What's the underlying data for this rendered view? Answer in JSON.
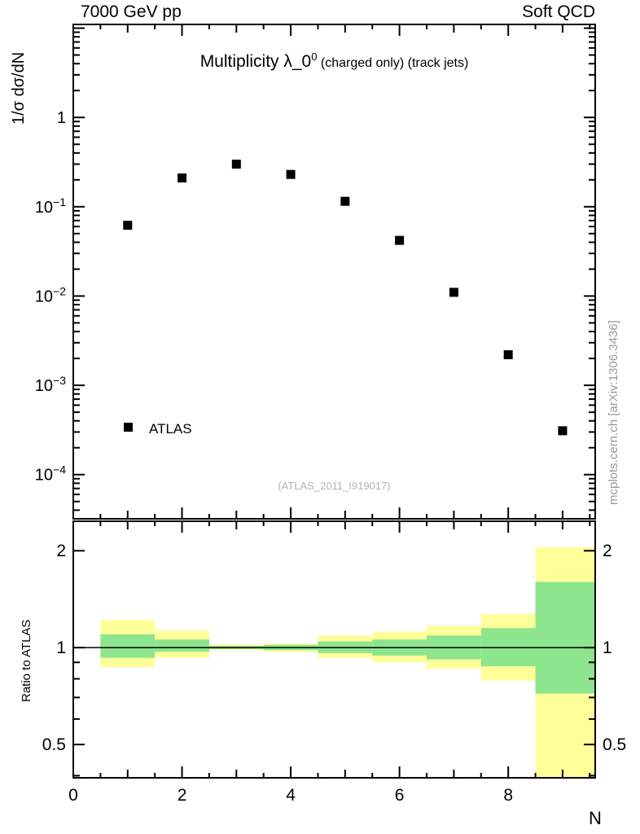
{
  "header": {
    "left": "7000 GeV pp",
    "right": "Soft QCD"
  },
  "watermarks": {
    "analysis": "(ATLAS_2011_I919017)",
    "side": "mcplots.cern.ch [arXiv:1306.3436]"
  },
  "top_panel": {
    "ylabel": "1/σ dσ/dN",
    "title": {
      "main": "Multiplicity λ_0",
      "sup": "0",
      "suffix": " (charged only) (track jets)"
    },
    "legend": {
      "label": "ATLAS"
    }
  },
  "ratio_panel": {
    "ylabel": "Ratio to ATLAS"
  },
  "xlabel": "N",
  "chart_data": {
    "type": "scatter",
    "top": {
      "type": "scatter",
      "marker": "filled-square",
      "marker_color": "#000000",
      "x": [
        1,
        2,
        3,
        4,
        5,
        6,
        7,
        8,
        9
      ],
      "y": [
        0.062,
        0.21,
        0.3,
        0.23,
        0.115,
        0.042,
        0.011,
        0.0022,
        0.00031
      ],
      "series_name": "ATLAS",
      "xlim": [
        0,
        9.6
      ],
      "ylim": [
        3.2e-05,
        11
      ],
      "yscale": "log",
      "xticks_labeled": [
        0,
        2,
        4,
        6,
        8
      ],
      "ytick_exponents": [
        0,
        -1,
        -2,
        -3,
        -4
      ]
    },
    "ratio": {
      "type": "bands",
      "yscale": "log",
      "ylim": [
        0.394,
        2.47
      ],
      "yticks": [
        0.5,
        1,
        2
      ],
      "ytick_minors": [
        0.4,
        0.6,
        0.7,
        0.8,
        0.9
      ],
      "line_y": 1,
      "band_colors": {
        "outer": "#ffff99",
        "inner": "#8de58d"
      },
      "bins": [
        {
          "x_lo": 0.5,
          "x_hi": 1.5,
          "outer_lo": 0.87,
          "outer_hi": 1.22,
          "inner_lo": 0.93,
          "inner_hi": 1.1
        },
        {
          "x_lo": 1.5,
          "x_hi": 2.5,
          "outer_lo": 0.93,
          "outer_hi": 1.13,
          "inner_lo": 0.97,
          "inner_hi": 1.06
        },
        {
          "x_lo": 2.5,
          "x_hi": 3.5,
          "outer_lo": 0.985,
          "outer_hi": 1.02,
          "inner_lo": 0.99,
          "inner_hi": 1.012
        },
        {
          "x_lo": 3.5,
          "x_hi": 4.5,
          "outer_lo": 0.97,
          "outer_hi": 1.03,
          "inner_lo": 0.982,
          "inner_hi": 1.02
        },
        {
          "x_lo": 4.5,
          "x_hi": 5.5,
          "outer_lo": 0.93,
          "outer_hi": 1.09,
          "inner_lo": 0.962,
          "inner_hi": 1.045
        },
        {
          "x_lo": 5.5,
          "x_hi": 6.5,
          "outer_lo": 0.9,
          "outer_hi": 1.12,
          "inner_lo": 0.945,
          "inner_hi": 1.06
        },
        {
          "x_lo": 6.5,
          "x_hi": 7.5,
          "outer_lo": 0.86,
          "outer_hi": 1.17,
          "inner_lo": 0.92,
          "inner_hi": 1.09
        },
        {
          "x_lo": 7.5,
          "x_hi": 8.5,
          "outer_lo": 0.79,
          "outer_hi": 1.27,
          "inner_lo": 0.875,
          "inner_hi": 1.15
        },
        {
          "x_lo": 8.5,
          "x_hi": 9.6,
          "outer_lo": 0.39,
          "outer_hi": 2.05,
          "inner_lo": 0.72,
          "inner_hi": 1.6
        }
      ]
    }
  }
}
